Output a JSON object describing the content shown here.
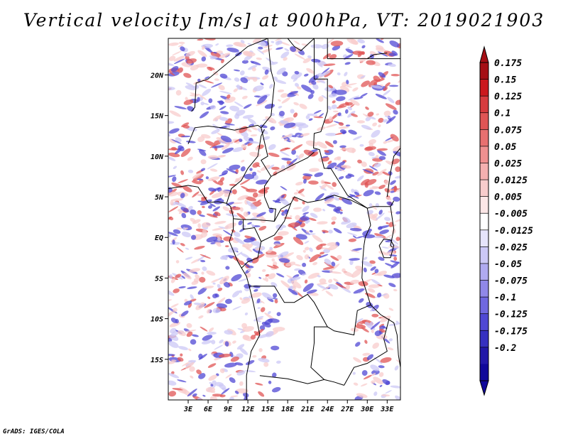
{
  "title": "Vertical velocity [m/s] at 900hPa, VT: 2019021903",
  "credit": "GrADS: IGES/COLA",
  "map": {
    "lon_range": [
      0,
      35
    ],
    "lat_range": [
      -20,
      24.5
    ],
    "x_ticks": [
      "3E",
      "6E",
      "9E",
      "12E",
      "15E",
      "18E",
      "21E",
      "24E",
      "27E",
      "30E",
      "33E"
    ],
    "x_tick_values": [
      3,
      6,
      9,
      12,
      15,
      18,
      21,
      24,
      27,
      30,
      33
    ],
    "y_ticks": [
      "20N",
      "15N",
      "10N",
      "5N",
      "EQ",
      "5S",
      "10S",
      "15S"
    ],
    "y_tick_values": [
      20,
      15,
      10,
      5,
      0,
      -5,
      -10,
      -15
    ]
  },
  "colorbar": {
    "labels": [
      "0.175",
      "0.15",
      "0.125",
      "0.1",
      "0.075",
      "0.05",
      "0.025",
      "0.0125",
      "0.005",
      "-0.005",
      "-0.0125",
      "-0.025",
      "-0.05",
      "-0.075",
      "-0.1",
      "-0.125",
      "-0.175",
      "-0.2"
    ],
    "colors": [
      "#a50f15",
      "#cb181d",
      "#d73b3e",
      "#e05555",
      "#e87070",
      "#ef9090",
      "#f4b0b0",
      "#f8cccc",
      "#fce6e6",
      "#ffffff",
      "#e6e4fb",
      "#ccc8f6",
      "#b0aaf0",
      "#9088e8",
      "#7068e0",
      "#5048d4",
      "#3630c0",
      "#2218a8",
      "#10089a"
    ]
  },
  "colors": {
    "pos_strong": "#e05555",
    "pos_light": "#f8cccc",
    "neg_strong": "#5048d4",
    "neg_light": "#ccc8f6"
  }
}
